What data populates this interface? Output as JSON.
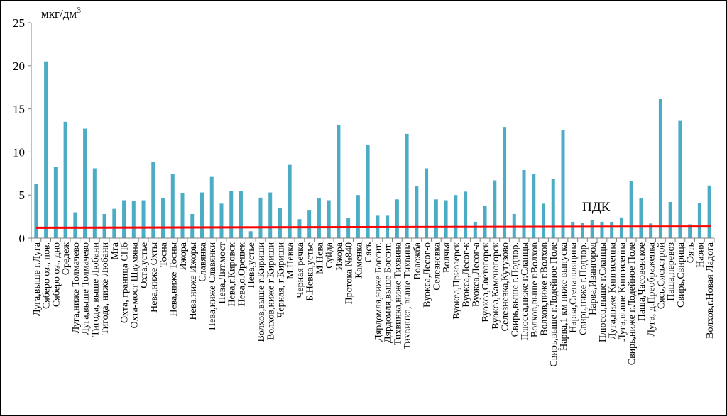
{
  "chart_data": {
    "type": "bar",
    "title": "",
    "xlabel": "",
    "ylabel": "",
    "unit_label": {
      "base": "мкг/дм",
      "sup": "3"
    },
    "ylim": [
      0,
      25
    ],
    "yticks": [
      0,
      5,
      10,
      15,
      20,
      25
    ],
    "grid": false,
    "legend": "none",
    "colors": {
      "bars": "#4bacc6",
      "threshold": "#ff0000"
    },
    "threshold": {
      "label": "ПДК",
      "value": 1.2
    },
    "categories": [
      "Луга,выше г.Луга",
      "Сяберо оз., пов.",
      "Сяберо оз., дно",
      "Оредеж",
      "Луга,ниже Толмачево",
      "Луга,выше Толмачево",
      "Тигода, выше Любани",
      "Тигода, ниже Любани",
      "Мга",
      "Охта, граница СПб",
      "Охта-мост Шаумяна",
      "Охта,устье",
      "Нева,ниже Охты",
      "Тосна",
      "Нева,ниже Тосны",
      "Ижора",
      "Нева,ниже Ижоры",
      "Славянка",
      "Нева,ниже Славянки",
      "Нева,Лит.мост",
      "Нева,г.Кировск",
      "Нева,о.Орешек",
      "Нева,устье",
      "Волхов,выше г.Кириши",
      "Волхов,ниже г.Кириши",
      "Черная, г.Кириши",
      "М.Невка",
      "Черная речка",
      "Б.Невка,устье",
      "М.Нева",
      "Суйда",
      "Ижора",
      "Протока №840",
      "Каменка",
      "Сясь",
      "Дярдомля,ниже Богсит.",
      "Дярдомля,выше Богсит.",
      "Тихвинка,ниже Тихвина",
      "Тихвинка, выше Тихвина",
      "Воложба",
      "Вуокса,Лесог-о",
      "Селезневка",
      "Волчья",
      "Вуокса,Приозерск",
      "Вуокса,Лесог-к",
      "Вуокса,Лесог-а",
      "Вуокса,Светогорск",
      "Вуокса,Каменогорск",
      "Селезневка,Кутузово",
      "Свирь,выше г.Подпор.",
      "Плюсса,ниже г.Сланцы",
      "Волхов,выше г.Волхов",
      "Волхов,ниже г.Волхов",
      "Свирь,выше г.Лодейное Поле",
      "Нарва,1 км ниже выпуска",
      "Нарва,Степановщина",
      "Свирь,ниже г.Подпор.",
      "Нарва,Ивангород",
      "Плюсса,выше г.Сланцы",
      "Луга,ниже Кингисеппа",
      "Луга,выше Кингисеппа",
      "Свирь,ниже г.Лодейное Поле",
      "Паша,Часовенское",
      "Луга, д.Преображенка",
      "Сясь,Сясьстрой",
      "Паша,перевоз",
      "Свирь,Свирица",
      "Оять",
      "Назия",
      "Волхов,г.Новая Ладога"
    ],
    "values": [
      6.3,
      20.5,
      8.3,
      13.5,
      3.0,
      12.7,
      8.1,
      2.8,
      3.4,
      4.4,
      4.3,
      4.4,
      8.8,
      4.6,
      7.4,
      5.2,
      2.8,
      5.3,
      7.1,
      4.0,
      5.5,
      5.5,
      0.8,
      4.7,
      5.3,
      3.5,
      8.5,
      2.2,
      3.2,
      4.6,
      4.4,
      13.1,
      2.3,
      5.0,
      10.8,
      2.6,
      2.6,
      4.5,
      12.1,
      6.0,
      8.1,
      4.5,
      4.4,
      5.0,
      5.4,
      1.9,
      3.7,
      6.7,
      12.9,
      2.8,
      7.9,
      7.4,
      4.0,
      6.9,
      12.5,
      1.9,
      1.8,
      2.1,
      1.9,
      1.9,
      2.4,
      6.6,
      4.6,
      1.7,
      16.2,
      4.2,
      13.6,
      1.6,
      4.1,
      6.1
    ]
  }
}
